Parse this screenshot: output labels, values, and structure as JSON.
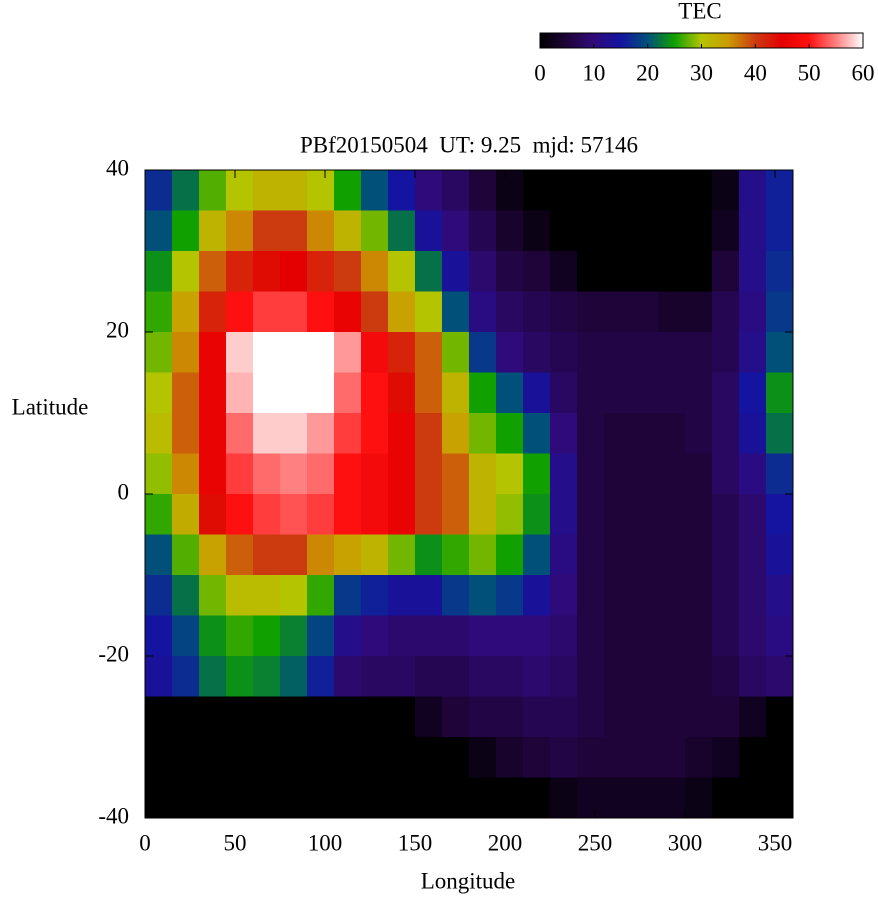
{
  "chart_data": {
    "type": "heatmap",
    "title": "PBf20150504  UT: 9.25  mjd: 57146",
    "xlabel": "Longitude",
    "ylabel": "Latitude",
    "colorbar_label": "TEC",
    "x": [
      7.5,
      22.5,
      37.5,
      52.5,
      67.5,
      82.5,
      97.5,
      112.5,
      127.5,
      142.5,
      157.5,
      172.5,
      187.5,
      202.5,
      217.5,
      232.5,
      247.5,
      262.5,
      277.5,
      292.5,
      307.5,
      322.5,
      337.5,
      352.5
    ],
    "y": [
      37.5,
      32.5,
      27.5,
      22.5,
      17.5,
      12.5,
      7.5,
      2.5,
      -2.5,
      -7.5,
      -12.5,
      -17.5,
      -22.5,
      -27.5,
      -32.5,
      -37.5
    ],
    "z": [
      [
        17,
        22,
        27,
        30,
        32,
        32,
        30,
        25,
        20,
        15,
        10,
        8,
        5,
        2,
        0,
        0,
        0,
        0,
        0,
        0,
        0,
        2,
        12,
        16
      ],
      [
        20,
        25,
        32,
        36,
        40,
        40,
        36,
        32,
        28,
        22,
        14,
        10,
        7,
        4,
        2,
        0,
        0,
        0,
        0,
        0,
        0,
        3,
        12,
        16
      ],
      [
        24,
        30,
        38,
        42,
        44,
        45,
        42,
        40,
        36,
        30,
        22,
        14,
        9,
        6,
        5,
        3,
        0,
        0,
        0,
        0,
        0,
        5,
        12,
        17
      ],
      [
        26,
        34,
        42,
        50,
        52,
        52,
        50,
        46,
        40,
        34,
        30,
        20,
        11,
        8,
        7,
        6,
        5,
        5,
        5,
        4,
        4,
        7,
        11,
        18
      ],
      [
        28,
        36,
        46,
        58,
        60,
        60,
        60,
        56,
        48,
        42,
        38,
        28,
        18,
        10,
        8,
        7,
        6,
        6,
        6,
        6,
        6,
        7,
        12,
        20
      ],
      [
        30,
        38,
        46,
        57,
        60,
        60,
        60,
        54,
        50,
        44,
        38,
        32,
        25,
        20,
        14,
        8,
        6,
        6,
        6,
        6,
        6,
        8,
        15,
        24
      ],
      [
        31,
        38,
        46,
        54,
        58,
        58,
        56,
        52,
        50,
        46,
        40,
        34,
        28,
        25,
        20,
        10,
        6,
        5,
        5,
        5,
        6,
        8,
        14,
        22
      ],
      [
        29,
        36,
        46,
        52,
        54,
        55,
        54,
        50,
        48,
        46,
        40,
        38,
        32,
        30,
        25,
        12,
        6,
        5,
        5,
        5,
        5,
        8,
        11,
        17
      ],
      [
        26,
        33,
        44,
        50,
        52,
        53,
        52,
        50,
        48,
        46,
        40,
        38,
        32,
        29,
        24,
        12,
        6,
        5,
        5,
        5,
        5,
        7,
        9,
        15
      ],
      [
        20,
        27,
        34,
        38,
        40,
        40,
        36,
        34,
        32,
        28,
        24,
        26,
        28,
        25,
        20,
        11,
        6,
        5,
        5,
        5,
        5,
        7,
        9,
        14
      ],
      [
        17,
        22,
        28,
        31,
        31,
        30,
        26,
        18,
        16,
        14,
        14,
        18,
        20,
        18,
        14,
        10,
        6,
        5,
        5,
        5,
        5,
        7,
        9,
        12
      ],
      [
        15,
        19,
        24,
        26,
        25,
        23,
        19,
        12,
        10,
        9,
        9,
        9,
        10,
        10,
        10,
        9,
        6,
        5,
        5,
        5,
        5,
        7,
        9,
        11
      ],
      [
        14,
        17,
        22,
        24,
        23,
        21,
        16,
        9,
        8,
        8,
        7,
        7,
        8,
        8,
        9,
        8,
        6,
        5,
        5,
        5,
        5,
        6,
        8,
        9
      ],
      [
        0,
        0,
        0,
        0,
        0,
        0,
        0,
        0,
        0,
        0,
        3,
        5,
        6,
        6,
        7,
        7,
        6,
        5,
        5,
        5,
        5,
        5,
        3,
        0
      ],
      [
        0,
        0,
        0,
        0,
        0,
        0,
        0,
        0,
        0,
        0,
        0,
        0,
        2,
        4,
        5,
        6,
        5,
        5,
        5,
        5,
        4,
        3,
        0,
        0
      ],
      [
        0,
        0,
        0,
        0,
        0,
        0,
        0,
        0,
        0,
        0,
        0,
        0,
        0,
        0,
        0,
        2,
        3,
        3,
        3,
        3,
        2,
        0,
        0,
        0
      ]
    ],
    "xlim": [
      0,
      360
    ],
    "xticks": [
      0,
      50,
      100,
      150,
      200,
      250,
      300,
      350
    ],
    "ylim": [
      -40,
      40
    ],
    "yticks": [
      -40,
      -20,
      0,
      20,
      40
    ],
    "zlim": [
      0,
      60
    ],
    "zticks": [
      0,
      10,
      20,
      30,
      40,
      50,
      60
    ],
    "colorscale": [
      [
        0,
        "#000000"
      ],
      [
        5,
        "#1e0438"
      ],
      [
        10,
        "#2e0a7a"
      ],
      [
        15,
        "#1414a0"
      ],
      [
        20,
        "#00507a"
      ],
      [
        25,
        "#10a000"
      ],
      [
        30,
        "#b4c400"
      ],
      [
        35,
        "#cc9a00"
      ],
      [
        40,
        "#cc3a10"
      ],
      [
        45,
        "#e40000"
      ],
      [
        50,
        "#ff1010"
      ],
      [
        55,
        "#ff8080"
      ],
      [
        60,
        "#ffffff"
      ]
    ]
  }
}
